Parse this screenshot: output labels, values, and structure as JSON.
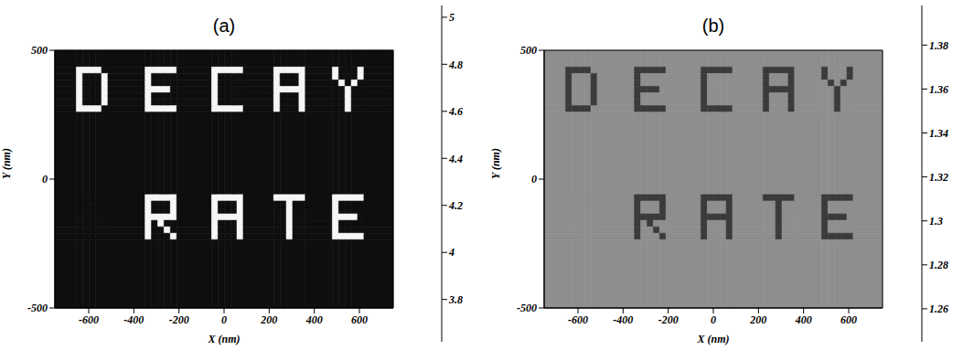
{
  "chart_data": [
    {
      "type": "heatmap",
      "title": "(a)",
      "x_label": "X (nm)",
      "y_label": "Y (nm)",
      "xlim": [
        -750,
        750
      ],
      "ylim": [
        -500,
        500
      ],
      "xticks": [
        -600,
        -400,
        -200,
        0,
        200,
        400,
        600
      ],
      "yticks": [
        -500,
        0,
        500
      ],
      "x_edges": [
        -750,
        -655,
        -627,
        -599,
        -571,
        -543,
        -515,
        -350,
        -322,
        -294,
        -266,
        -238,
        -210,
        -55,
        -27,
        1,
        29,
        57,
        85,
        220,
        248,
        276,
        304,
        332,
        360,
        480,
        508,
        536,
        564,
        592,
        620,
        750
      ],
      "y_edges": [
        500,
        435,
        410,
        385,
        360,
        335,
        310,
        285,
        260,
        -60,
        -85,
        -110,
        -135,
        -160,
        -185,
        -210,
        -235,
        -500
      ],
      "cells": [
        [
          3.7,
          3.7,
          3.7,
          3.7,
          3.7,
          3.7,
          3.7,
          3.7,
          3.7,
          3.7,
          3.7,
          3.7,
          3.7,
          3.7,
          3.7,
          3.7,
          3.7,
          3.7,
          3.7,
          3.7,
          3.7,
          3.7,
          3.7,
          3.7,
          3.7,
          3.7,
          3.7,
          3.7,
          3.7,
          3.7,
          3.7
        ],
        [
          3.7,
          5,
          5,
          5,
          5,
          3.7,
          3.7,
          5,
          5,
          5,
          5,
          5,
          3.7,
          5,
          5,
          5,
          5,
          5,
          3.7,
          5,
          5,
          5,
          5,
          5,
          3.7,
          5,
          3.7,
          3.7,
          3.7,
          5,
          3.7
        ],
        [
          3.7,
          5,
          3.7,
          3.7,
          3.7,
          5,
          3.7,
          5,
          3.7,
          3.7,
          3.7,
          3.7,
          3.7,
          5,
          3.7,
          3.7,
          3.7,
          3.7,
          3.7,
          5,
          3.7,
          3.7,
          3.7,
          5,
          3.7,
          5,
          3.7,
          3.7,
          3.7,
          5,
          3.7
        ],
        [
          3.7,
          5,
          3.7,
          3.7,
          3.7,
          5,
          3.7,
          5,
          3.7,
          3.7,
          3.7,
          3.7,
          3.7,
          5,
          3.7,
          3.7,
          3.7,
          3.7,
          3.7,
          5,
          3.7,
          3.7,
          3.7,
          5,
          3.7,
          3.7,
          5,
          3.7,
          5,
          3.7,
          3.7
        ],
        [
          3.7,
          5,
          3.7,
          3.7,
          3.7,
          5,
          3.7,
          5,
          5,
          5,
          5,
          3.7,
          3.7,
          5,
          3.7,
          3.7,
          3.7,
          3.7,
          3.7,
          5,
          5,
          5,
          5,
          5,
          3.7,
          3.7,
          3.7,
          5,
          3.7,
          3.7,
          3.7
        ],
        [
          3.7,
          5,
          3.7,
          3.7,
          3.7,
          5,
          3.7,
          5,
          3.7,
          3.7,
          3.7,
          3.7,
          3.7,
          5,
          3.7,
          3.7,
          3.7,
          3.7,
          3.7,
          5,
          3.7,
          3.7,
          3.7,
          5,
          3.7,
          3.7,
          3.7,
          5,
          3.7,
          3.7,
          3.7
        ],
        [
          3.7,
          5,
          3.7,
          3.7,
          3.7,
          5,
          3.7,
          5,
          3.7,
          3.7,
          3.7,
          3.7,
          3.7,
          5,
          3.7,
          3.7,
          3.7,
          3.7,
          3.7,
          5,
          3.7,
          3.7,
          3.7,
          5,
          3.7,
          3.7,
          3.7,
          5,
          3.7,
          3.7,
          3.7
        ],
        [
          3.7,
          5,
          5,
          5,
          5,
          3.7,
          3.7,
          5,
          5,
          5,
          5,
          5,
          3.7,
          5,
          5,
          5,
          5,
          5,
          3.7,
          5,
          3.7,
          3.7,
          3.7,
          5,
          3.7,
          3.7,
          3.7,
          5,
          3.7,
          3.7,
          3.7
        ],
        [
          3.7,
          3.7,
          3.7,
          3.7,
          3.7,
          3.7,
          3.7,
          3.7,
          3.7,
          3.7,
          3.7,
          3.7,
          3.7,
          3.7,
          3.7,
          3.7,
          3.7,
          3.7,
          3.7,
          3.7,
          3.7,
          3.7,
          3.7,
          3.7,
          3.7,
          3.7,
          3.7,
          3.7,
          3.7,
          3.7,
          3.7
        ],
        [
          3.7,
          3.7,
          3.7,
          3.7,
          3.7,
          3.7,
          3.7,
          5,
          5,
          5,
          5,
          5,
          3.7,
          5,
          5,
          5,
          5,
          5,
          3.7,
          5,
          5,
          5,
          5,
          5,
          3.7,
          5,
          5,
          5,
          5,
          5,
          3.7
        ],
        [
          3.7,
          3.7,
          3.7,
          3.7,
          3.7,
          3.7,
          3.7,
          5,
          3.7,
          3.7,
          3.7,
          5,
          3.7,
          5,
          3.7,
          3.7,
          3.7,
          5,
          3.7,
          3.7,
          3.7,
          5,
          3.7,
          3.7,
          3.7,
          5,
          3.7,
          3.7,
          3.7,
          3.7,
          3.7
        ],
        [
          3.7,
          3.7,
          3.7,
          3.7,
          3.7,
          3.7,
          3.7,
          5,
          3.7,
          3.7,
          3.7,
          5,
          3.7,
          5,
          3.7,
          3.7,
          3.7,
          5,
          3.7,
          3.7,
          3.7,
          5,
          3.7,
          3.7,
          3.7,
          5,
          3.7,
          3.7,
          3.7,
          3.7,
          3.7
        ],
        [
          3.7,
          3.7,
          3.7,
          3.7,
          3.7,
          3.7,
          3.7,
          5,
          5,
          5,
          5,
          5,
          3.7,
          5,
          5,
          5,
          5,
          5,
          3.7,
          3.7,
          3.7,
          5,
          3.7,
          3.7,
          3.7,
          5,
          5,
          5,
          5,
          3.7,
          3.7
        ],
        [
          3.7,
          3.7,
          3.7,
          3.7,
          3.7,
          3.7,
          3.7,
          5,
          3.7,
          5,
          3.7,
          3.7,
          3.7,
          5,
          3.7,
          3.7,
          3.7,
          5,
          3.7,
          3.7,
          3.7,
          5,
          3.7,
          3.7,
          3.7,
          5,
          3.7,
          3.7,
          3.7,
          3.7,
          3.7
        ],
        [
          3.7,
          3.7,
          3.7,
          3.7,
          3.7,
          3.7,
          3.7,
          5,
          3.7,
          3.7,
          5,
          3.7,
          3.7,
          5,
          3.7,
          3.7,
          3.7,
          5,
          3.7,
          3.7,
          3.7,
          5,
          3.7,
          3.7,
          3.7,
          5,
          3.7,
          3.7,
          3.7,
          3.7,
          3.7
        ],
        [
          3.7,
          3.7,
          3.7,
          3.7,
          3.7,
          3.7,
          3.7,
          5,
          3.7,
          3.7,
          3.7,
          5,
          3.7,
          5,
          3.7,
          3.7,
          3.7,
          5,
          3.7,
          3.7,
          3.7,
          5,
          3.7,
          3.7,
          3.7,
          5,
          5,
          5,
          5,
          5,
          3.7
        ],
        [
          3.7,
          3.7,
          3.7,
          3.7,
          3.7,
          3.7,
          3.7,
          3.7,
          3.7,
          3.7,
          3.7,
          3.7,
          3.7,
          3.7,
          3.7,
          3.7,
          3.7,
          3.7,
          3.7,
          3.7,
          3.7,
          3.7,
          3.7,
          3.7,
          3.7,
          3.7,
          3.7,
          3.7,
          3.7,
          3.7,
          3.7
        ]
      ],
      "colorbar_range": [
        3.62,
        5.05
      ],
      "colorbar_ticks": [
        3.8,
        4,
        4.2,
        4.4,
        4.6,
        4.8,
        5
      ]
    },
    {
      "type": "heatmap",
      "title": "(b)",
      "x_label": "X (nm)",
      "y_label": "Y (nm)",
      "xlim": [
        -750,
        750
      ],
      "ylim": [
        -500,
        500
      ],
      "xticks": [
        -600,
        -400,
        -200,
        0,
        200,
        400,
        600
      ],
      "yticks": [
        -500,
        0,
        500
      ],
      "x_edges": [
        -750,
        -655,
        -627,
        -599,
        -571,
        -543,
        -515,
        -350,
        -322,
        -294,
        -266,
        -238,
        -210,
        -55,
        -27,
        1,
        29,
        57,
        85,
        220,
        248,
        276,
        304,
        332,
        360,
        480,
        508,
        536,
        564,
        592,
        620,
        750
      ],
      "y_edges": [
        500,
        435,
        410,
        385,
        360,
        335,
        310,
        285,
        260,
        -60,
        -85,
        -110,
        -135,
        -160,
        -185,
        -210,
        -235,
        -500
      ],
      "cells": [
        [
          1.33,
          1.33,
          1.33,
          1.33,
          1.33,
          1.33,
          1.33,
          1.33,
          1.33,
          1.33,
          1.33,
          1.33,
          1.33,
          1.33,
          1.33,
          1.33,
          1.33,
          1.33,
          1.33,
          1.33,
          1.33,
          1.33,
          1.33,
          1.33,
          1.33,
          1.33,
          1.33,
          1.33,
          1.33,
          1.33,
          1.33
        ],
        [
          1.33,
          1.28,
          1.28,
          1.28,
          1.28,
          1.33,
          1.33,
          1.28,
          1.28,
          1.28,
          1.28,
          1.28,
          1.33,
          1.28,
          1.28,
          1.28,
          1.28,
          1.28,
          1.33,
          1.28,
          1.28,
          1.28,
          1.28,
          1.28,
          1.33,
          1.28,
          1.33,
          1.33,
          1.33,
          1.28,
          1.33
        ],
        [
          1.33,
          1.28,
          1.33,
          1.33,
          1.33,
          1.28,
          1.33,
          1.28,
          1.33,
          1.33,
          1.33,
          1.33,
          1.33,
          1.28,
          1.33,
          1.33,
          1.33,
          1.33,
          1.33,
          1.28,
          1.33,
          1.33,
          1.33,
          1.28,
          1.33,
          1.28,
          1.33,
          1.33,
          1.33,
          1.28,
          1.33
        ],
        [
          1.33,
          1.28,
          1.33,
          1.33,
          1.33,
          1.28,
          1.33,
          1.28,
          1.33,
          1.33,
          1.33,
          1.33,
          1.33,
          1.28,
          1.33,
          1.33,
          1.33,
          1.33,
          1.33,
          1.28,
          1.33,
          1.33,
          1.33,
          1.28,
          1.33,
          1.33,
          1.28,
          1.33,
          1.28,
          1.33,
          1.33
        ],
        [
          1.33,
          1.28,
          1.33,
          1.33,
          1.33,
          1.28,
          1.33,
          1.28,
          1.28,
          1.28,
          1.28,
          1.33,
          1.33,
          1.28,
          1.33,
          1.33,
          1.33,
          1.33,
          1.33,
          1.28,
          1.28,
          1.28,
          1.28,
          1.28,
          1.33,
          1.33,
          1.33,
          1.28,
          1.33,
          1.33,
          1.33
        ],
        [
          1.33,
          1.28,
          1.33,
          1.33,
          1.33,
          1.28,
          1.33,
          1.28,
          1.33,
          1.33,
          1.33,
          1.33,
          1.33,
          1.28,
          1.33,
          1.33,
          1.33,
          1.33,
          1.33,
          1.28,
          1.33,
          1.33,
          1.33,
          1.28,
          1.33,
          1.33,
          1.33,
          1.28,
          1.33,
          1.33,
          1.33
        ],
        [
          1.33,
          1.28,
          1.33,
          1.33,
          1.33,
          1.28,
          1.33,
          1.28,
          1.33,
          1.33,
          1.33,
          1.33,
          1.33,
          1.28,
          1.33,
          1.33,
          1.33,
          1.33,
          1.33,
          1.28,
          1.33,
          1.33,
          1.33,
          1.28,
          1.33,
          1.33,
          1.33,
          1.28,
          1.33,
          1.33,
          1.33
        ],
        [
          1.33,
          1.28,
          1.28,
          1.28,
          1.28,
          1.33,
          1.33,
          1.28,
          1.28,
          1.28,
          1.28,
          1.28,
          1.33,
          1.28,
          1.28,
          1.28,
          1.28,
          1.28,
          1.33,
          1.28,
          1.33,
          1.33,
          1.33,
          1.28,
          1.33,
          1.33,
          1.33,
          1.28,
          1.33,
          1.33,
          1.33
        ],
        [
          1.33,
          1.33,
          1.33,
          1.33,
          1.33,
          1.33,
          1.33,
          1.33,
          1.33,
          1.33,
          1.33,
          1.33,
          1.33,
          1.33,
          1.33,
          1.33,
          1.33,
          1.33,
          1.33,
          1.33,
          1.33,
          1.33,
          1.33,
          1.33,
          1.33,
          1.33,
          1.33,
          1.33,
          1.33,
          1.33,
          1.33
        ],
        [
          1.33,
          1.33,
          1.33,
          1.33,
          1.33,
          1.33,
          1.33,
          1.28,
          1.28,
          1.28,
          1.28,
          1.28,
          1.33,
          1.28,
          1.28,
          1.28,
          1.28,
          1.28,
          1.33,
          1.28,
          1.28,
          1.28,
          1.28,
          1.28,
          1.33,
          1.28,
          1.28,
          1.28,
          1.28,
          1.28,
          1.33
        ],
        [
          1.33,
          1.33,
          1.33,
          1.33,
          1.33,
          1.33,
          1.33,
          1.28,
          1.33,
          1.33,
          1.33,
          1.28,
          1.33,
          1.28,
          1.33,
          1.33,
          1.33,
          1.28,
          1.33,
          1.33,
          1.33,
          1.28,
          1.33,
          1.33,
          1.33,
          1.28,
          1.33,
          1.33,
          1.33,
          1.33,
          1.33
        ],
        [
          1.33,
          1.33,
          1.33,
          1.33,
          1.33,
          1.33,
          1.33,
          1.28,
          1.33,
          1.33,
          1.33,
          1.28,
          1.33,
          1.28,
          1.33,
          1.33,
          1.33,
          1.28,
          1.33,
          1.33,
          1.33,
          1.28,
          1.33,
          1.33,
          1.33,
          1.28,
          1.33,
          1.33,
          1.33,
          1.33,
          1.33
        ],
        [
          1.33,
          1.33,
          1.33,
          1.33,
          1.33,
          1.33,
          1.33,
          1.28,
          1.28,
          1.28,
          1.28,
          1.28,
          1.33,
          1.28,
          1.28,
          1.28,
          1.28,
          1.28,
          1.33,
          1.33,
          1.33,
          1.28,
          1.33,
          1.33,
          1.33,
          1.28,
          1.28,
          1.28,
          1.28,
          1.33,
          1.33
        ],
        [
          1.33,
          1.33,
          1.33,
          1.33,
          1.33,
          1.33,
          1.33,
          1.28,
          1.33,
          1.28,
          1.33,
          1.33,
          1.33,
          1.28,
          1.33,
          1.33,
          1.33,
          1.28,
          1.33,
          1.33,
          1.33,
          1.28,
          1.33,
          1.33,
          1.33,
          1.28,
          1.33,
          1.33,
          1.33,
          1.33,
          1.33
        ],
        [
          1.33,
          1.33,
          1.33,
          1.33,
          1.33,
          1.33,
          1.33,
          1.28,
          1.33,
          1.33,
          1.28,
          1.33,
          1.33,
          1.28,
          1.33,
          1.33,
          1.33,
          1.28,
          1.33,
          1.33,
          1.33,
          1.28,
          1.33,
          1.33,
          1.33,
          1.28,
          1.33,
          1.33,
          1.33,
          1.33,
          1.33
        ],
        [
          1.33,
          1.33,
          1.33,
          1.33,
          1.33,
          1.33,
          1.33,
          1.28,
          1.33,
          1.33,
          1.33,
          1.28,
          1.33,
          1.28,
          1.33,
          1.33,
          1.33,
          1.28,
          1.33,
          1.33,
          1.33,
          1.28,
          1.33,
          1.33,
          1.33,
          1.28,
          1.28,
          1.28,
          1.28,
          1.28,
          1.33
        ],
        [
          1.33,
          1.33,
          1.33,
          1.33,
          1.33,
          1.33,
          1.33,
          1.33,
          1.33,
          1.33,
          1.33,
          1.33,
          1.33,
          1.33,
          1.33,
          1.33,
          1.33,
          1.33,
          1.33,
          1.33,
          1.33,
          1.33,
          1.33,
          1.33,
          1.33,
          1.33,
          1.33,
          1.33,
          1.33,
          1.33,
          1.33
        ]
      ],
      "colorbar_range": [
        1.245,
        1.398
      ],
      "colorbar_ticks": [
        1.26,
        1.28,
        1.3,
        1.32,
        1.34,
        1.36,
        1.38
      ]
    }
  ]
}
